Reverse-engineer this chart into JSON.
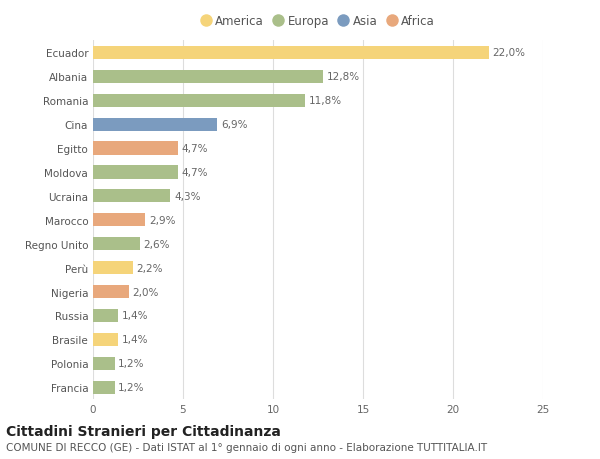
{
  "countries": [
    "Francia",
    "Polonia",
    "Brasile",
    "Russia",
    "Nigeria",
    "Perù",
    "Regno Unito",
    "Marocco",
    "Ucraina",
    "Moldova",
    "Egitto",
    "Cina",
    "Romania",
    "Albania",
    "Ecuador"
  ],
  "values": [
    1.2,
    1.2,
    1.4,
    1.4,
    2.0,
    2.2,
    2.6,
    2.9,
    4.3,
    4.7,
    4.7,
    6.9,
    11.8,
    12.8,
    22.0
  ],
  "labels": [
    "1,2%",
    "1,2%",
    "1,4%",
    "1,4%",
    "2,0%",
    "2,2%",
    "2,6%",
    "2,9%",
    "4,3%",
    "4,7%",
    "4,7%",
    "6,9%",
    "11,8%",
    "12,8%",
    "22,0%"
  ],
  "continents": [
    "Europa",
    "Europa",
    "America",
    "Europa",
    "Africa",
    "America",
    "Europa",
    "Africa",
    "Europa",
    "Europa",
    "Africa",
    "Asia",
    "Europa",
    "Europa",
    "America"
  ],
  "colors": {
    "America": "#F5D47A",
    "Europa": "#AABF8A",
    "Asia": "#7B9BBF",
    "Africa": "#E8A87C"
  },
  "legend_order": [
    "America",
    "Europa",
    "Asia",
    "Africa"
  ],
  "title": "Cittadini Stranieri per Cittadinanza",
  "subtitle": "COMUNE DI RECCO (GE) - Dati ISTAT al 1° gennaio di ogni anno - Elaborazione TUTTITALIA.IT",
  "xlim": [
    0,
    25
  ],
  "xticks": [
    0,
    5,
    10,
    15,
    20,
    25
  ],
  "background_color": "#ffffff",
  "grid_color": "#dddddd",
  "bar_height": 0.55,
  "title_fontsize": 10,
  "subtitle_fontsize": 7.5,
  "label_fontsize": 7.5,
  "tick_fontsize": 7.5,
  "legend_fontsize": 8.5
}
